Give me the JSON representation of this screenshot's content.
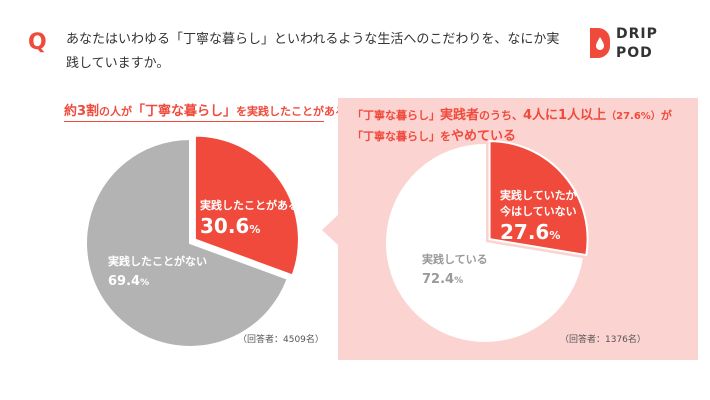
{
  "question": {
    "mark": "Q",
    "text": "あなたはいわゆる「丁寧な暮らし」といわれるような生活へのこだわりを、なにか実践していますか。"
  },
  "brand": {
    "line1": "DRIP",
    "line2": "POD"
  },
  "left": {
    "headline_pre": "約3割",
    "headline_mid": "の人が",
    "headline_key": "「丁寧な暮らし」",
    "headline_post": "を実践したことがある",
    "respondents": "（回答者：4509名）"
  },
  "right": {
    "headline_l1_pre": "「丁寧な暮らし」",
    "headline_l1_key": "実践者",
    "headline_l1_mid": "のうち、",
    "headline_l1_key2": "4人に1人以上",
    "headline_l1_pct": "（27.6%）",
    "headline_l1_post": "が",
    "headline_l2_pre": "「丁寧な暮らし」",
    "headline_l2_mid": "を",
    "headline_l2_key": "やめている",
    "respondents": "（回答者：1376名）"
  },
  "chart_data": [
    {
      "type": "pie",
      "slices": [
        {
          "label": "実践したことがある",
          "value": 30.6,
          "value_text": "30.6",
          "color": "#f04a3c"
        },
        {
          "label": "実践したことがない",
          "value": 69.4,
          "value_text": "69.4",
          "color": "#b3b3b3"
        }
      ],
      "unit": "%"
    },
    {
      "type": "pie",
      "slices": [
        {
          "label_lines": [
            "実践していたが",
            "今はしていない"
          ],
          "value": 27.6,
          "value_text": "27.6",
          "color": "#f04a3c"
        },
        {
          "label": "実践している",
          "value": 72.4,
          "value_text": "72.4",
          "color": "#ffffff"
        }
      ],
      "unit": "%"
    }
  ],
  "colors": {
    "accent": "#f04a3c",
    "panel": "#fbd3d1",
    "gray": "#b3b3b3"
  }
}
